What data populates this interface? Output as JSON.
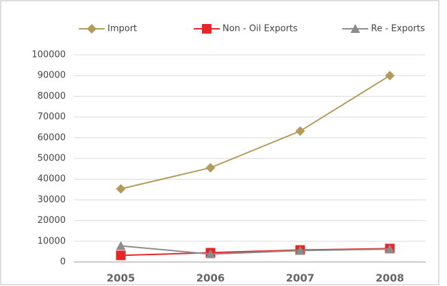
{
  "chart_data": {
    "type": "line",
    "categories": [
      "2005",
      "2006",
      "2007",
      "2008"
    ],
    "series": [
      {
        "name": "Import",
        "color": "#b49b5c",
        "marker": "diamond",
        "values": [
          35300,
          45500,
          63200,
          90000
        ]
      },
      {
        "name": "Non - Oil Exports",
        "color": "#e8262a",
        "marker": "square",
        "values": [
          3200,
          4500,
          5800,
          6500
        ]
      },
      {
        "name": "Re - Exports",
        "color": "#8c8c8c",
        "marker": "triangle",
        "values": [
          7800,
          3800,
          5500,
          6200
        ]
      }
    ],
    "ylim": [
      0,
      100000
    ],
    "yticks": [
      0,
      10000,
      20000,
      30000,
      40000,
      50000,
      60000,
      70000,
      80000,
      90000,
      100000
    ],
    "grid": true,
    "legend": "top"
  }
}
